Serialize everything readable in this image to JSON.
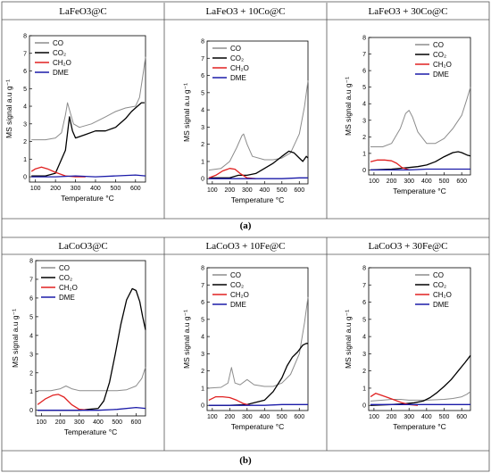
{
  "figure": {
    "row_labels": [
      "(a)",
      "(b)"
    ]
  },
  "chart_data": [
    {
      "type": "line",
      "title": "LaFeO3@C",
      "xlabel": "Temperature °C",
      "ylabel": "MS signal a.u g⁻¹",
      "xlim": [
        70,
        650
      ],
      "ylim": [
        -0.3,
        8
      ],
      "xticks": [
        100,
        200,
        300,
        400,
        500,
        600
      ],
      "yticks": [
        0,
        1,
        2,
        3,
        4,
        5,
        6,
        7,
        8
      ],
      "legend": "top-left",
      "series": [
        {
          "name": "CO",
          "color": "#8c8c8c",
          "x": [
            80,
            150,
            200,
            230,
            250,
            260,
            270,
            290,
            320,
            380,
            450,
            500,
            550,
            600,
            620,
            640,
            650
          ],
          "y": [
            2.1,
            2.1,
            2.2,
            2.5,
            3.5,
            4.2,
            3.8,
            3.0,
            2.8,
            3.0,
            3.4,
            3.7,
            3.9,
            4.0,
            4.5,
            6.0,
            6.8
          ]
        },
        {
          "name": "CO₂",
          "color": "#000000",
          "x": [
            80,
            150,
            200,
            250,
            270,
            285,
            300,
            350,
            400,
            450,
            500,
            550,
            580,
            610,
            630,
            645
          ],
          "y": [
            0.05,
            0.05,
            0.2,
            1.5,
            3.4,
            2.6,
            2.2,
            2.4,
            2.6,
            2.6,
            2.8,
            3.3,
            3.7,
            4.0,
            4.2,
            4.2
          ]
        },
        {
          "name": "CH₂O",
          "color": "#e02020",
          "x": [
            80,
            100,
            130,
            160,
            200,
            250,
            300,
            350
          ],
          "y": [
            0.3,
            0.45,
            0.55,
            0.45,
            0.25,
            0.05,
            0.0,
            0.0
          ]
        },
        {
          "name": "DME",
          "color": "#1a1aa8",
          "x": [
            80,
            200,
            300,
            400,
            500,
            600,
            650
          ],
          "y": [
            0.0,
            0.0,
            0.05,
            0.0,
            0.05,
            0.1,
            0.05
          ]
        }
      ]
    },
    {
      "type": "line",
      "title": "LaFeO3 + 10Co@C",
      "xlabel": "Temperature °C",
      "ylabel": "MS signal a.u g⁻¹",
      "xlim": [
        70,
        650
      ],
      "ylim": [
        -0.3,
        8
      ],
      "xticks": [
        100,
        200,
        300,
        400,
        500,
        600
      ],
      "yticks": [
        0,
        1,
        2,
        3,
        4,
        5,
        6,
        7,
        8
      ],
      "legend": "top-left",
      "series": [
        {
          "name": "CO",
          "color": "#8c8c8c",
          "x": [
            80,
            150,
            200,
            240,
            270,
            280,
            300,
            330,
            400,
            450,
            500,
            550,
            600,
            630,
            650
          ],
          "y": [
            0.5,
            0.6,
            1.0,
            1.8,
            2.5,
            2.6,
            2.0,
            1.3,
            1.1,
            1.1,
            1.2,
            1.5,
            2.6,
            4.2,
            5.7
          ]
        },
        {
          "name": "CO₂",
          "color": "#000000",
          "x": [
            80,
            150,
            200,
            250,
            300,
            350,
            400,
            450,
            500,
            540,
            570,
            600,
            620,
            640,
            650
          ],
          "y": [
            0.05,
            0.05,
            0.05,
            0.2,
            0.2,
            0.3,
            0.6,
            0.9,
            1.3,
            1.6,
            1.5,
            1.2,
            1.0,
            1.3,
            1.2
          ]
        },
        {
          "name": "CH₂O",
          "color": "#e02020",
          "x": [
            80,
            120,
            160,
            200,
            230,
            260,
            300,
            350
          ],
          "y": [
            0.05,
            0.2,
            0.45,
            0.6,
            0.55,
            0.3,
            0.05,
            0.0
          ]
        },
        {
          "name": "DME",
          "color": "#1a1aa8",
          "x": [
            80,
            200,
            300,
            400,
            500,
            600,
            650
          ],
          "y": [
            0.0,
            0.0,
            0.0,
            0.0,
            0.0,
            0.05,
            0.05
          ]
        }
      ]
    },
    {
      "type": "line",
      "title": "LaFeO3 + 30Co@C",
      "xlabel": "Temperature °C",
      "ylabel": "MS signal a.u g⁻¹",
      "xlim": [
        70,
        650
      ],
      "ylim": [
        -0.3,
        8
      ],
      "xticks": [
        100,
        200,
        300,
        400,
        500,
        600
      ],
      "yticks": [
        0,
        1,
        2,
        3,
        4,
        5,
        6,
        7,
        8
      ],
      "legend": "top-right",
      "series": [
        {
          "name": "CO",
          "color": "#8c8c8c",
          "x": [
            80,
            150,
            200,
            250,
            280,
            300,
            320,
            350,
            400,
            450,
            500,
            550,
            600,
            630,
            650
          ],
          "y": [
            1.4,
            1.4,
            1.6,
            2.5,
            3.4,
            3.6,
            3.2,
            2.3,
            1.6,
            1.6,
            1.9,
            2.5,
            3.3,
            4.3,
            5.0
          ]
        },
        {
          "name": "CO₂",
          "color": "#000000",
          "x": [
            80,
            200,
            250,
            300,
            350,
            400,
            450,
            500,
            550,
            580,
            600,
            630,
            650
          ],
          "y": [
            0.0,
            0.05,
            0.1,
            0.15,
            0.2,
            0.3,
            0.5,
            0.8,
            1.05,
            1.1,
            1.05,
            0.9,
            0.85
          ]
        },
        {
          "name": "CH₂O",
          "color": "#e02020",
          "x": [
            80,
            120,
            160,
            200,
            230,
            260,
            300
          ],
          "y": [
            0.5,
            0.6,
            0.6,
            0.55,
            0.4,
            0.15,
            0.0
          ]
        },
        {
          "name": "DME",
          "color": "#1a1aa8",
          "x": [
            80,
            200,
            300,
            400,
            500,
            600,
            650
          ],
          "y": [
            0.0,
            0.0,
            0.0,
            0.05,
            0.05,
            0.05,
            0.05
          ]
        }
      ]
    },
    {
      "type": "line",
      "title": "LaCoO3@C",
      "xlabel": "Temperature °C",
      "ylabel": "MS signal a.u g⁻¹",
      "xlim": [
        70,
        650
      ],
      "ylim": [
        -0.3,
        8
      ],
      "xticks": [
        100,
        200,
        300,
        400,
        500,
        600
      ],
      "yticks": [
        0,
        1,
        2,
        3,
        4,
        5,
        6,
        7,
        8
      ],
      "legend": "top-left",
      "series": [
        {
          "name": "CO",
          "color": "#8c8c8c",
          "x": [
            80,
            150,
            200,
            230,
            260,
            300,
            400,
            500,
            550,
            600,
            630,
            650
          ],
          "y": [
            1.05,
            1.05,
            1.15,
            1.3,
            1.15,
            1.05,
            1.05,
            1.05,
            1.1,
            1.3,
            1.7,
            2.3
          ]
        },
        {
          "name": "CO₂",
          "color": "#000000",
          "x": [
            80,
            200,
            300,
            400,
            430,
            460,
            490,
            520,
            550,
            580,
            600,
            620,
            635,
            650
          ],
          "y": [
            0.0,
            0.0,
            0.0,
            0.1,
            0.5,
            1.5,
            3.0,
            4.6,
            5.9,
            6.5,
            6.4,
            5.8,
            5.0,
            4.3
          ]
        },
        {
          "name": "CH₂O",
          "color": "#e02020",
          "x": [
            80,
            120,
            160,
            190,
            220,
            260,
            300,
            350
          ],
          "y": [
            0.3,
            0.6,
            0.8,
            0.85,
            0.7,
            0.3,
            0.05,
            0.0
          ]
        },
        {
          "name": "DME",
          "color": "#1a1aa8",
          "x": [
            80,
            200,
            300,
            400,
            500,
            600,
            650
          ],
          "y": [
            0.0,
            0.0,
            0.0,
            0.0,
            0.05,
            0.15,
            0.1
          ]
        }
      ]
    },
    {
      "type": "line",
      "title": "LaCoO3 + 10Fe@C",
      "xlabel": "Temperature °C",
      "ylabel": "MS signal a.u g⁻¹",
      "xlim": [
        70,
        650
      ],
      "ylim": [
        -0.3,
        8
      ],
      "xticks": [
        100,
        200,
        300,
        400,
        500,
        600
      ],
      "yticks": [
        0,
        1,
        2,
        3,
        4,
        5,
        6,
        7,
        8
      ],
      "legend": "top-left",
      "series": [
        {
          "name": "CO",
          "color": "#8c8c8c",
          "x": [
            80,
            150,
            190,
            210,
            230,
            260,
            300,
            340,
            400,
            450,
            500,
            550,
            600,
            630,
            650
          ],
          "y": [
            1.0,
            1.05,
            1.3,
            2.2,
            1.3,
            1.2,
            1.5,
            1.2,
            1.1,
            1.1,
            1.3,
            1.8,
            3.0,
            4.8,
            6.3
          ]
        },
        {
          "name": "CO₂",
          "color": "#000000",
          "x": [
            80,
            200,
            300,
            400,
            450,
            500,
            530,
            560,
            590,
            620,
            640,
            650
          ],
          "y": [
            0.0,
            0.0,
            0.05,
            0.3,
            0.8,
            1.6,
            2.3,
            2.8,
            3.1,
            3.5,
            3.6,
            3.6
          ]
        },
        {
          "name": "CH₂O",
          "color": "#e02020",
          "x": [
            80,
            120,
            160,
            200,
            240,
            280,
            320
          ],
          "y": [
            0.3,
            0.5,
            0.5,
            0.45,
            0.3,
            0.1,
            0.0
          ]
        },
        {
          "name": "DME",
          "color": "#1a1aa8",
          "x": [
            80,
            200,
            300,
            400,
            500,
            600,
            650
          ],
          "y": [
            0.0,
            0.0,
            0.0,
            0.0,
            0.05,
            0.05,
            0.05
          ]
        }
      ]
    },
    {
      "type": "line",
      "title": "LaCoO3 + 30Fe@C",
      "xlabel": "Temperature °C",
      "ylabel": "MS signal a.u g⁻¹",
      "xlim": [
        70,
        650
      ],
      "ylim": [
        -0.3,
        8
      ],
      "xticks": [
        100,
        200,
        300,
        400,
        500,
        600
      ],
      "yticks": [
        0,
        1,
        2,
        3,
        4,
        5,
        6,
        7,
        8
      ],
      "legend": "top-right",
      "series": [
        {
          "name": "CO",
          "color": "#8c8c8c",
          "x": [
            80,
            150,
            200,
            250,
            300,
            400,
            500,
            550,
            600,
            630,
            650
          ],
          "y": [
            0.25,
            0.3,
            0.35,
            0.35,
            0.3,
            0.3,
            0.35,
            0.4,
            0.5,
            0.65,
            0.8
          ]
        },
        {
          "name": "CO₂",
          "color": "#000000",
          "x": [
            80,
            200,
            280,
            330,
            380,
            420,
            460,
            500,
            540,
            580,
            620,
            650
          ],
          "y": [
            0.0,
            0.05,
            0.1,
            0.15,
            0.25,
            0.45,
            0.75,
            1.1,
            1.5,
            2.0,
            2.5,
            2.9
          ]
        },
        {
          "name": "CH₂O",
          "color": "#e02020",
          "x": [
            80,
            110,
            140,
            180,
            220,
            260,
            300,
            350
          ],
          "y": [
            0.5,
            0.7,
            0.6,
            0.45,
            0.3,
            0.15,
            0.05,
            0.0
          ]
        },
        {
          "name": "DME",
          "color": "#1a1aa8",
          "x": [
            80,
            200,
            300,
            400,
            500,
            600,
            650
          ],
          "y": [
            0.05,
            0.05,
            0.05,
            0.05,
            0.05,
            0.05,
            0.05
          ]
        }
      ]
    }
  ]
}
